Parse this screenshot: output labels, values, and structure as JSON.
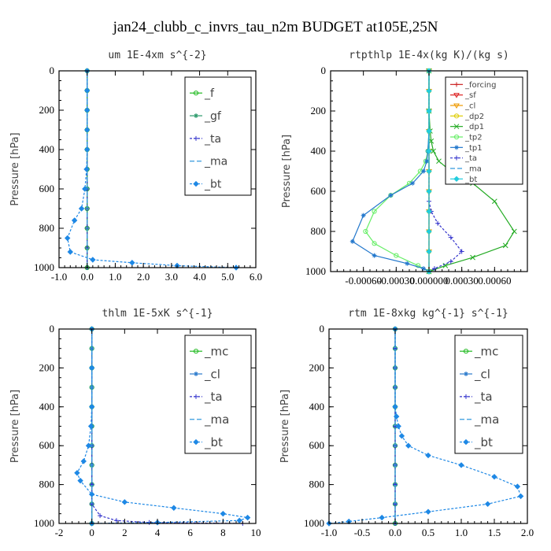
{
  "suptitle": "jan24_clubb_c_invrs_tau_n2m  BUDGET at105E,25N",
  "chart_data": [
    {
      "type": "line",
      "title": "um  1E-4xm s^{-2}",
      "ylabel": "Pressure [hPa]",
      "xlim": [
        -1.0,
        6.0
      ],
      "ylim": [
        0,
        1000
      ],
      "xticks": [
        -1.0,
        0.0,
        1.0,
        2.0,
        3.0,
        4.0,
        5.0,
        6.0
      ],
      "xtick_labels": [
        "-1.0",
        "0.0",
        "1.0",
        "2.0",
        "3.0",
        "4.0",
        "5.0",
        "6.0"
      ],
      "yticks": [
        0,
        200,
        400,
        600,
        800,
        1000
      ],
      "ytick_labels": [
        "0",
        "200",
        "400",
        "600",
        "800",
        "1000"
      ],
      "legend": "top-right",
      "series": [
        {
          "name": "_f",
          "color": "#22bb22",
          "marker": "circle",
          "dash": "",
          "x": [
            0,
            0,
            0,
            0,
            0,
            0,
            0,
            0,
            0,
            0,
            0
          ],
          "y": [
            0,
            100,
            200,
            300,
            400,
            500,
            600,
            700,
            800,
            900,
            1000
          ]
        },
        {
          "name": "_gf",
          "color": "#2a9a6a",
          "marker": "star",
          "dash": "",
          "x": [
            0,
            0,
            0,
            0,
            0,
            0,
            0,
            0,
            0,
            0,
            0
          ],
          "y": [
            0,
            100,
            200,
            300,
            400,
            500,
            600,
            700,
            800,
            900,
            1000
          ]
        },
        {
          "name": "_ta",
          "color": "#3333cc",
          "marker": "plus",
          "dash": "3,2",
          "x": [
            0,
            0,
            0,
            0,
            0,
            0,
            0,
            0,
            0,
            0,
            0
          ],
          "y": [
            0,
            100,
            200,
            300,
            400,
            500,
            600,
            700,
            800,
            900,
            1000
          ]
        },
        {
          "name": "_ma",
          "color": "#3399dd",
          "marker": "none",
          "dash": "6,3",
          "x": [
            0,
            0,
            0,
            0,
            0,
            0,
            0,
            0,
            0,
            0,
            0
          ],
          "y": [
            0,
            100,
            200,
            300,
            400,
            500,
            600,
            700,
            800,
            900,
            1000
          ]
        },
        {
          "name": "_bt",
          "color": "#1e88e5",
          "marker": "diamond",
          "dash": "3,2",
          "x": [
            0,
            0,
            0,
            0,
            0,
            -0.02,
            -0.08,
            -0.2,
            -0.45,
            -0.7,
            -0.6,
            0.2,
            1.6,
            3.2,
            5.3
          ],
          "y": [
            0,
            100,
            200,
            300,
            400,
            500,
            600,
            700,
            760,
            850,
            920,
            960,
            975,
            990,
            1000
          ]
        }
      ]
    },
    {
      "type": "line",
      "title": "rtpthlp  1E-4x(kg K)/(kg s)",
      "ylabel": "Pressure [hPa]",
      "xlim": [
        -0.0009,
        0.0009
      ],
      "ylim": [
        0,
        1000
      ],
      "xticks": [
        -0.0006,
        -0.0003,
        0.0,
        0.0003,
        0.0006
      ],
      "xtick_labels": [
        "-0.00060",
        "-0.00030",
        "0.000000",
        "0.00030",
        "0.00060"
      ],
      "yticks": [
        0,
        200,
        400,
        600,
        800,
        1000
      ],
      "ytick_labels": [
        "0",
        "200",
        "400",
        "600",
        "800",
        "1000"
      ],
      "legend": "top-right",
      "series": [
        {
          "name": "_forcing",
          "color": "#cc2222",
          "marker": "plus",
          "dash": "",
          "x": [
            0,
            0,
            0,
            0,
            0,
            0,
            0,
            0,
            0,
            0,
            0
          ],
          "y": [
            0,
            100,
            200,
            300,
            400,
            500,
            600,
            700,
            800,
            900,
            1000
          ]
        },
        {
          "name": "_sf",
          "color": "#dd2222",
          "marker": "tri",
          "dash": "",
          "x": [
            0,
            0,
            0,
            0,
            0,
            0,
            0,
            0,
            0,
            0,
            0
          ],
          "y": [
            0,
            100,
            200,
            300,
            400,
            500,
            600,
            700,
            800,
            900,
            1000
          ]
        },
        {
          "name": "_cl",
          "color": "#ee9900",
          "marker": "tri",
          "dash": "",
          "x": [
            0,
            0,
            0,
            0,
            0,
            0,
            0,
            0,
            0,
            0,
            0
          ],
          "y": [
            0,
            100,
            200,
            300,
            400,
            500,
            600,
            700,
            800,
            900,
            1000
          ]
        },
        {
          "name": "_dp2",
          "color": "#ddcc00",
          "marker": "circle",
          "dash": "",
          "x": [
            0,
            0,
            0,
            0,
            0,
            0,
            0,
            0,
            0,
            0,
            0
          ],
          "y": [
            0,
            100,
            200,
            300,
            400,
            500,
            600,
            700,
            800,
            900,
            1000
          ]
        },
        {
          "name": "_dp1",
          "color": "#22aa22",
          "marker": "cross",
          "dash": "",
          "x": [
            0,
            0,
            1e-05,
            2e-05,
            4e-05,
            9e-05,
            0.0002,
            0.0004,
            0.0006,
            0.00078,
            0.0007,
            0.0004,
            0.00015,
            0
          ],
          "y": [
            0,
            200,
            300,
            350,
            400,
            450,
            500,
            560,
            650,
            800,
            870,
            930,
            970,
            1000
          ]
        },
        {
          "name": "_tp2",
          "color": "#66ee66",
          "marker": "circle",
          "dash": "",
          "x": [
            0,
            0,
            0,
            -1e-05,
            -3e-05,
            -8e-05,
            -0.00018,
            -0.00035,
            -0.0005,
            -0.00058,
            -0.0005,
            -0.0003,
            -0.0001,
            0
          ],
          "y": [
            0,
            200,
            300,
            400,
            450,
            500,
            560,
            620,
            700,
            800,
            860,
            920,
            970,
            1000
          ]
        },
        {
          "name": "_tp1",
          "color": "#2277cc",
          "marker": "star",
          "dash": "",
          "x": [
            0,
            0,
            0,
            -1e-05,
            -2e-05,
            -5e-05,
            -0.00015,
            -0.00035,
            -0.0006,
            -0.0007,
            -0.0005,
            -0.0002,
            -5e-05,
            0
          ],
          "y": [
            0,
            200,
            300,
            400,
            450,
            500,
            560,
            620,
            720,
            850,
            920,
            960,
            985,
            1000
          ]
        },
        {
          "name": "_ta",
          "color": "#3333cc",
          "marker": "plus",
          "dash": "3,2",
          "x": [
            0,
            0,
            0,
            0,
            2e-05,
            8e-05,
            0.0002,
            0.0003,
            0.0002,
            5e-05,
            0
          ],
          "y": [
            0,
            300,
            500,
            650,
            700,
            760,
            830,
            900,
            950,
            985,
            1000
          ]
        },
        {
          "name": "_ma",
          "color": "#3399dd",
          "marker": "none",
          "dash": "6,3",
          "x": [
            0,
            0,
            0,
            0,
            0,
            0,
            0,
            0,
            0,
            0,
            0
          ],
          "y": [
            0,
            100,
            200,
            300,
            400,
            500,
            600,
            700,
            800,
            900,
            1000
          ]
        },
        {
          "name": "_bt",
          "color": "#22ccdd",
          "marker": "diamond",
          "dash": "",
          "x": [
            0,
            0,
            0,
            0,
            0,
            0,
            0,
            0,
            0,
            0,
            0
          ],
          "y": [
            0,
            100,
            200,
            300,
            400,
            500,
            600,
            700,
            800,
            900,
            1000
          ]
        }
      ]
    },
    {
      "type": "line",
      "title": "thlm  1E-5xK s^{-1}",
      "ylabel": "Pressure [hPa]",
      "xlim": [
        -2,
        10
      ],
      "ylim": [
        0,
        1000
      ],
      "xticks": [
        -2,
        0,
        2,
        4,
        6,
        8,
        10
      ],
      "xtick_labels": [
        "-2",
        "0",
        "2",
        "4",
        "6",
        "8",
        "10"
      ],
      "yticks": [
        0,
        200,
        400,
        600,
        800,
        1000
      ],
      "ytick_labels": [
        "0",
        "200",
        "400",
        "600",
        "800",
        "1000"
      ],
      "legend": "top-right",
      "series": [
        {
          "name": "_mc",
          "color": "#22bb22",
          "marker": "circle",
          "dash": "",
          "x": [
            0,
            0,
            0,
            0,
            0,
            0,
            0,
            0,
            0,
            0,
            0
          ],
          "y": [
            0,
            100,
            200,
            300,
            400,
            500,
            600,
            700,
            800,
            900,
            1000
          ]
        },
        {
          "name": "_cl",
          "color": "#2a7acc",
          "marker": "star",
          "dash": "",
          "x": [
            0,
            0,
            0,
            0,
            0,
            0,
            0,
            0,
            0,
            0,
            0
          ],
          "y": [
            0,
            100,
            200,
            300,
            400,
            500,
            600,
            700,
            800,
            900,
            1000
          ]
        },
        {
          "name": "_ta",
          "color": "#3333cc",
          "marker": "plus",
          "dash": "3,2",
          "x": [
            0,
            0,
            0,
            0,
            0,
            0,
            0.5,
            1.5,
            3.5,
            9.2
          ],
          "y": [
            0,
            200,
            400,
            600,
            800,
            900,
            960,
            985,
            995,
            1000
          ]
        },
        {
          "name": "_ma",
          "color": "#3399dd",
          "marker": "none",
          "dash": "6,3",
          "x": [
            0,
            0,
            0,
            0,
            0,
            0,
            0,
            0,
            0,
            0,
            0
          ],
          "y": [
            0,
            100,
            200,
            300,
            400,
            500,
            600,
            700,
            800,
            900,
            1000
          ]
        },
        {
          "name": "_bt",
          "color": "#1e88e5",
          "marker": "diamond",
          "dash": "3,2",
          "x": [
            0,
            0,
            0,
            -0.05,
            -0.2,
            -0.5,
            -0.9,
            -0.7,
            0,
            2,
            5,
            8,
            9.5,
            9,
            4,
            0
          ],
          "y": [
            0,
            200,
            400,
            500,
            600,
            680,
            740,
            780,
            850,
            890,
            920,
            950,
            970,
            985,
            995,
            1000
          ]
        }
      ]
    },
    {
      "type": "line",
      "title": "rtm  1E-8xkg kg^{-1} s^{-1}",
      "ylabel": "Pressure [hPa]",
      "xlim": [
        -1.0,
        2.0
      ],
      "ylim": [
        0,
        1000
      ],
      "xticks": [
        -1.0,
        -0.5,
        0.0,
        0.5,
        1.0,
        1.5,
        2.0
      ],
      "xtick_labels": [
        "-1.0",
        "-0.5",
        "0.0",
        "0.5",
        "1.0",
        "1.5",
        "2.0"
      ],
      "yticks": [
        0,
        200,
        400,
        600,
        800,
        1000
      ],
      "ytick_labels": [
        "0",
        "200",
        "400",
        "600",
        "800",
        "1000"
      ],
      "legend": "top-right",
      "series": [
        {
          "name": "_mc",
          "color": "#22bb22",
          "marker": "circle",
          "dash": "",
          "x": [
            0,
            0,
            0,
            0,
            0,
            0,
            0,
            0,
            0,
            0,
            0
          ],
          "y": [
            0,
            100,
            200,
            300,
            400,
            500,
            600,
            700,
            800,
            900,
            1000
          ]
        },
        {
          "name": "_cl",
          "color": "#2a7acc",
          "marker": "star",
          "dash": "",
          "x": [
            0,
            0,
            0,
            0,
            0,
            0,
            0,
            0,
            0,
            0,
            0
          ],
          "y": [
            0,
            100,
            200,
            300,
            400,
            500,
            600,
            700,
            800,
            900,
            1000
          ]
        },
        {
          "name": "_ta",
          "color": "#3333cc",
          "marker": "plus",
          "dash": "3,2",
          "x": [
            0,
            0,
            0,
            0,
            0,
            0,
            0,
            0,
            0,
            0,
            0
          ],
          "y": [
            0,
            100,
            200,
            300,
            400,
            500,
            600,
            700,
            800,
            900,
            1000
          ]
        },
        {
          "name": "_ma",
          "color": "#3399dd",
          "marker": "none",
          "dash": "6,3",
          "x": [
            0,
            0,
            0,
            0,
            0,
            0,
            0,
            0,
            0,
            0,
            0
          ],
          "y": [
            0,
            100,
            200,
            300,
            400,
            500,
            600,
            700,
            800,
            900,
            1000
          ]
        },
        {
          "name": "_bt",
          "color": "#1e88e5",
          "marker": "diamond",
          "dash": "3,2",
          "x": [
            0,
            0,
            0.02,
            0.05,
            0.1,
            0.2,
            0.5,
            1.0,
            1.5,
            1.85,
            1.9,
            1.4,
            0.5,
            -0.2,
            -0.7,
            -1.0
          ],
          "y": [
            0,
            400,
            450,
            500,
            550,
            600,
            650,
            700,
            760,
            810,
            860,
            900,
            940,
            970,
            990,
            1000
          ]
        }
      ]
    }
  ]
}
